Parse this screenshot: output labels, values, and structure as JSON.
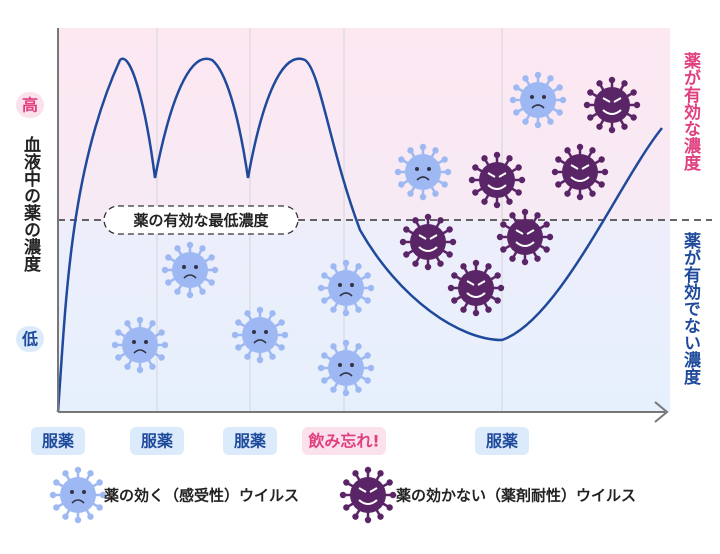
{
  "y_axis": {
    "label": "血液中の薬の濃度",
    "high": "高",
    "low": "低"
  },
  "zones": {
    "effective": "薬が有効な濃度",
    "ineffective": "薬が有効でない濃度"
  },
  "threshold_label": "薬の有効な最低濃度",
  "x_events": [
    "服薬",
    "服薬",
    "服薬",
    "飲み忘れ!",
    "服薬"
  ],
  "legend": {
    "susceptible": "薬の効く（感受性）ウイルス",
    "resistant": "薬の効かない（薬剤耐性）ウイルス"
  }
}
